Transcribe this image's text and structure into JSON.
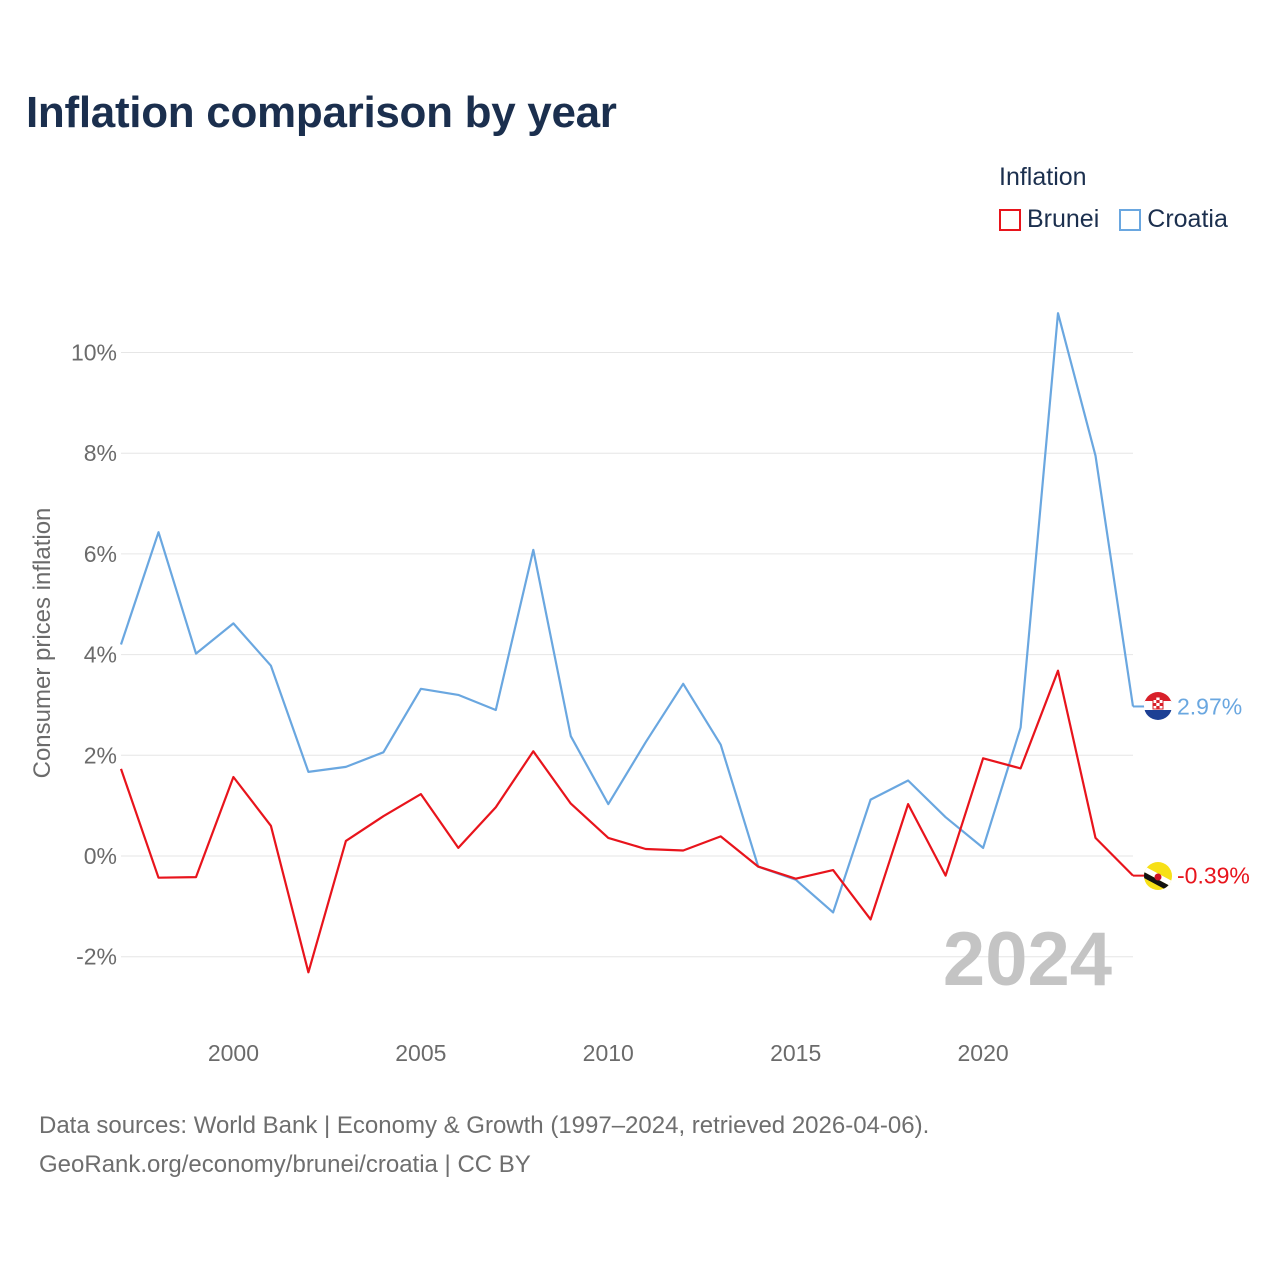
{
  "title": "Inflation comparison by year",
  "legend": {
    "title": "Inflation",
    "items": [
      {
        "label": "Brunei",
        "color": "#e8141c"
      },
      {
        "label": "Croatia",
        "color": "#6aa7e0"
      }
    ]
  },
  "footer": {
    "line1": "Data sources: World Bank | Economy & Growth (1997–2024, retrieved 2026-04-06).",
    "line2": "GeoRank.org/economy/brunei/croatia | CC BY"
  },
  "chart_data": {
    "type": "line",
    "title": "Inflation comparison by year",
    "xlabel": "",
    "ylabel": "Consumer prices inflation",
    "x": [
      1997,
      1998,
      1999,
      2000,
      2001,
      2002,
      2003,
      2004,
      2005,
      2006,
      2007,
      2008,
      2009,
      2010,
      2011,
      2012,
      2013,
      2014,
      2015,
      2016,
      2017,
      2018,
      2019,
      2020,
      2021,
      2022,
      2023,
      2024
    ],
    "xlim": [
      1997,
      2024
    ],
    "ylim": [
      -3,
      11
    ],
    "xticks": [
      2000,
      2005,
      2010,
      2015,
      2020
    ],
    "yticks": [
      -2,
      0,
      2,
      4,
      6,
      8,
      10
    ],
    "ytick_labels": [
      "-2%",
      "0%",
      "2%",
      "4%",
      "6%",
      "8%",
      "10%"
    ],
    "grid": true,
    "year_watermark": "2024",
    "series": [
      {
        "name": "Brunei",
        "color": "#e8141c",
        "end_label": "-0.39%",
        "flag": "brunei",
        "values": [
          1.73,
          -0.43,
          -0.42,
          1.57,
          0.6,
          -2.31,
          0.3,
          0.79,
          1.23,
          0.16,
          0.97,
          2.08,
          1.04,
          0.36,
          0.14,
          0.11,
          0.39,
          -0.21,
          -0.45,
          -0.28,
          -1.26,
          1.03,
          -0.39,
          1.94,
          1.74,
          3.68,
          0.36,
          -0.39
        ]
      },
      {
        "name": "Croatia",
        "color": "#6aa7e0",
        "end_label": "2.97%",
        "flag": "croatia",
        "values": [
          4.2,
          6.43,
          4.02,
          4.62,
          3.78,
          1.67,
          1.77,
          2.06,
          3.32,
          3.2,
          2.9,
          6.08,
          2.38,
          1.03,
          2.26,
          3.42,
          2.21,
          -0.21,
          -0.47,
          -1.12,
          1.12,
          1.5,
          0.77,
          0.16,
          2.55,
          10.78,
          7.95,
          2.97
        ]
      }
    ]
  }
}
